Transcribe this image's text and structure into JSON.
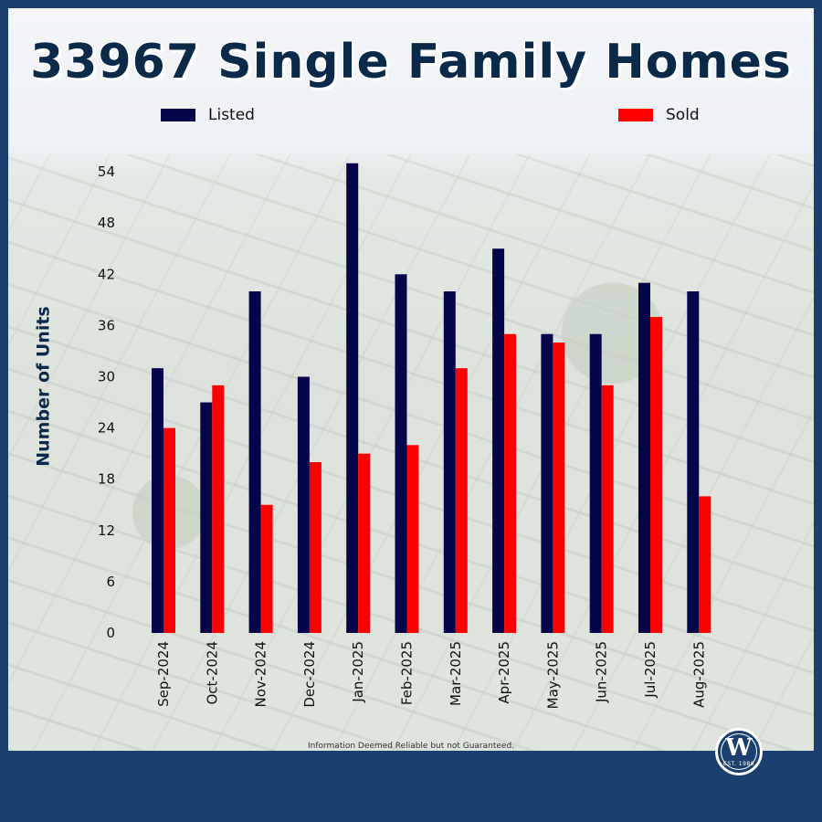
{
  "chart_data": {
    "type": "bar",
    "title": "33967 Single Family Homes",
    "ylabel": "Number of Units",
    "xlabel": "",
    "categories": [
      "Sep-2024",
      "Oct-2024",
      "Nov-2024",
      "Dec-2024",
      "Jan-2025",
      "Feb-2025",
      "Mar-2025",
      "Apr-2025",
      "May-2025",
      "Jun-2025",
      "Jul-2025",
      "Aug-2025"
    ],
    "series": [
      {
        "name": "Listed",
        "color": "#05054a",
        "values": [
          31,
          27,
          40,
          30,
          55,
          42,
          40,
          45,
          35,
          35,
          41,
          40
        ]
      },
      {
        "name": "Sold",
        "color": "#ff0000",
        "values": [
          24,
          29,
          15,
          20,
          21,
          22,
          31,
          35,
          34,
          29,
          37,
          16
        ]
      }
    ],
    "yticks": [
      0,
      6,
      12,
      18,
      24,
      30,
      36,
      42,
      48,
      54
    ],
    "ylim": [
      0,
      55
    ],
    "grid": false,
    "legend": "top, horizontal"
  },
  "footer": {
    "disclaimer": "Information Deemed Reliable but not Guaranteed."
  },
  "logo": {
    "letter": "W",
    "est": "EST. 1989"
  }
}
